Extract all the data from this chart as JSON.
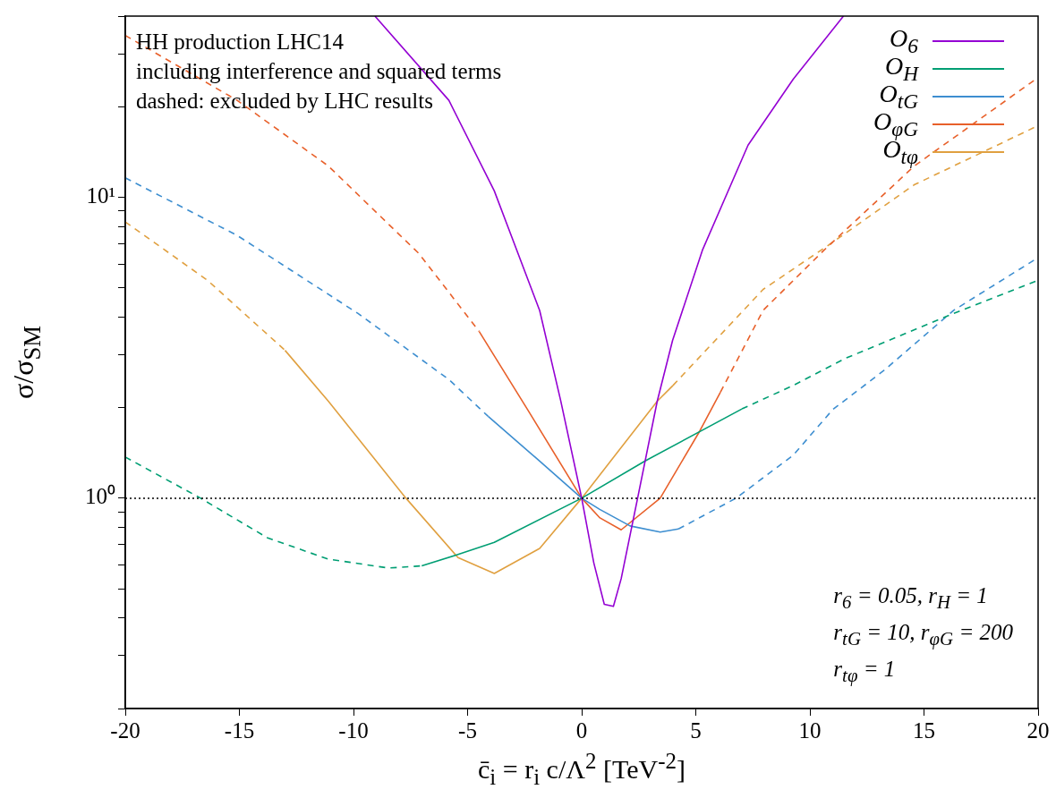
{
  "chart_data": {
    "type": "line",
    "xlabel": "c̄$_{i}$ = r$_{i}$ c/Λ$^{2}$ [TeV$^{-2}$]",
    "ylabel": "σ/σ$_{SM}$",
    "log": "y",
    "grid": false,
    "legend": "top right",
    "marker": "none",
    "xlim": [
      -20,
      20
    ],
    "xticks": [
      -20,
      -15,
      -10,
      -5,
      0,
      5,
      10,
      15,
      20
    ],
    "ylim": [
      0.2,
      40
    ],
    "yticks": [
      {
        "value": 0.2,
        "label": null
      },
      {
        "value": 0.3,
        "label": null
      },
      {
        "value": 0.4,
        "label": null
      },
      {
        "value": 0.5,
        "label": null
      },
      {
        "value": 0.6,
        "label": null
      },
      {
        "value": 0.7,
        "label": null
      },
      {
        "value": 0.8,
        "label": null
      },
      {
        "value": 0.9,
        "label": null
      },
      {
        "value": 1,
        "label": "10⁰"
      },
      {
        "value": 2,
        "label": null
      },
      {
        "value": 3,
        "label": null
      },
      {
        "value": 4,
        "label": null
      },
      {
        "value": 5,
        "label": null
      },
      {
        "value": 6,
        "label": null
      },
      {
        "value": 7,
        "label": null
      },
      {
        "value": 8,
        "label": null
      },
      {
        "value": 9,
        "label": null
      },
      {
        "value": 10,
        "label": "10¹"
      },
      {
        "value": 20,
        "label": null
      },
      {
        "value": 30,
        "label": null
      },
      {
        "value": 40,
        "label": null
      }
    ],
    "ref_lines": [
      {
        "axis": "y",
        "value": 1,
        "color": "#000000",
        "line_style": "dotted"
      }
    ],
    "annotations": [
      "HH production LHC14",
      "including interference and squared terms",
      "dashed: excluded by LHC results",
      "r$_{6}$ = 0.05, r$_{H}$ = 1",
      "r$_{tG}$ = 10, r$_{φG}$ = 200",
      "r$_{tφ}$ = 1"
    ],
    "series": [
      {
        "name": "O$_{6}$",
        "color": "#9400d3",
        "line_style": "solid",
        "x": [
          -9.06,
          -5.82,
          -3.83,
          -1.84,
          -0.92,
          0,
          0.53,
          0.99,
          1.39,
          1.73,
          2.45,
          3.31,
          3.98,
          5.29,
          7.29,
          9.27,
          11.47
        ],
        "values": [
          40,
          21,
          10.5,
          4.2,
          2.11,
          1,
          0.61,
          0.444,
          0.437,
          0.54,
          1,
          2.1,
          3.34,
          6.67,
          14.9,
          24.7,
          40
        ]
      },
      {
        "name": "O$_{H}$",
        "color": "#009e73",
        "line_style": "solid",
        "x": [
          -7.01,
          -5.42,
          -3.83,
          0,
          2.78,
          7.02
        ],
        "values": [
          0.596,
          0.65,
          0.713,
          1,
          1.33,
          1.98
        ]
      },
      {
        "name": "O$_{tG}$",
        "color": "#3d8ed0",
        "line_style": "solid",
        "x": [
          -4.1,
          -2,
          0,
          0.79,
          2.12,
          3.44,
          4.24
        ],
        "values": [
          1.87,
          1.36,
          1,
          0.918,
          0.809,
          0.772,
          0.79
        ]
      },
      {
        "name": "O$_{φG}$",
        "color": "#e8602a",
        "line_style": "solid",
        "x": [
          -4.49,
          -2.37,
          0,
          0.8,
          1.73,
          3.44,
          5.17,
          6.08
        ],
        "values": [
          3.58,
          1.97,
          1,
          0.86,
          0.785,
          1,
          1.67,
          2.25
        ]
      },
      {
        "name": "O$_{tφ}$",
        "color": "#e0a040",
        "line_style": "solid",
        "x": [
          -13,
          -11.1,
          -7.7,
          -5.42,
          -3.83,
          -1.84,
          0,
          1.5,
          3.31,
          4
        ],
        "values": [
          3.1,
          2.1,
          1,
          0.635,
          0.562,
          0.681,
          1,
          1.4,
          2.1,
          2.37
        ]
      },
      {
        "color": "#009e73",
        "line_style": "dashed",
        "x": [
          -20,
          -16.7,
          -13.76,
          -11.12,
          -8.47,
          -7.01,
          0,
          7.02,
          9.27,
          11.53,
          16.3,
          20
        ],
        "values": [
          1.37,
          1,
          0.738,
          0.628,
          0.586,
          0.596,
          null,
          1.98,
          2.37,
          2.91,
          4.11,
          5.3
        ]
      },
      {
        "color": "#3d8ed0",
        "line_style": "dashed",
        "x": [
          -20,
          -15.1,
          -9.8,
          -5.82,
          -4.1,
          0,
          4.24,
          6.76,
          9.27,
          11,
          13.25,
          16.3,
          20
        ],
        "values": [
          11.6,
          7.47,
          4.11,
          2.48,
          1.87,
          null,
          0.79,
          1,
          1.39,
          1.97,
          2.66,
          4.21,
          6.3
        ]
      },
      {
        "color": "#e8602a",
        "line_style": "dashed",
        "x": [
          -20,
          -15.1,
          -11.1,
          -7.14,
          -4.49,
          0,
          6.08,
          7.95,
          10.6,
          14.57,
          20
        ],
        "values": [
          34.5,
          21,
          12.7,
          6.51,
          3.58,
          null,
          2.25,
          4.21,
          6.65,
          12.7,
          25
        ]
      },
      {
        "color": "#e0a040",
        "line_style": "dashed",
        "x": [
          -20,
          -16.4,
          -13,
          0,
          4,
          7.95,
          10.86,
          14.57,
          20
        ],
        "values": [
          8.28,
          5.3,
          3.1,
          null,
          2.37,
          4.94,
          6.97,
          11,
          17.3
        ]
      }
    ]
  }
}
